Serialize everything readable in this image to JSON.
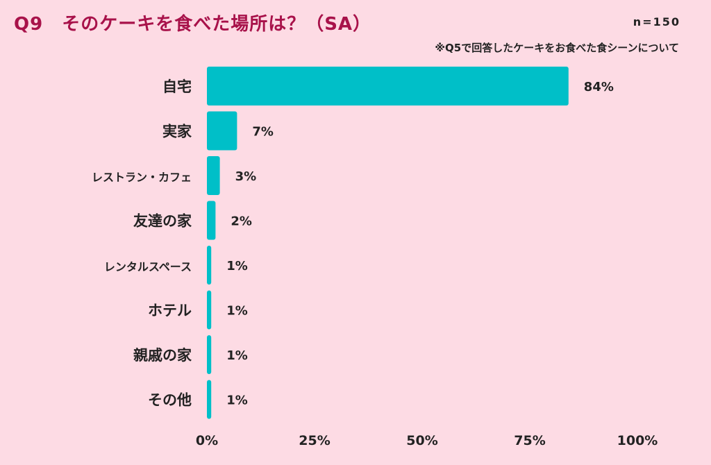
{
  "header": {
    "title": "Q9　そのケーキを食べた場所は？（SA）",
    "sample_size": "n=150",
    "note": "※Q5で回答したケーキをお食べた食シーンについて"
  },
  "colors": {
    "background": "#fddbe4",
    "bar": "#00bfc8",
    "title": "#a8124a",
    "text": "#222222"
  },
  "chart_data": {
    "type": "bar",
    "orientation": "horizontal",
    "categories": [
      "自宅",
      "実家",
      "レストラン・カフェ",
      "友達の家",
      "レンタルスペース",
      "ホテル",
      "親戚の家",
      "その他"
    ],
    "values": [
      84,
      7,
      3,
      2,
      1,
      1,
      1,
      1
    ],
    "value_labels": [
      "84%",
      "7%",
      "3%",
      "2%",
      "1%",
      "1%",
      "1%",
      "1%"
    ],
    "xlim": [
      0,
      100
    ],
    "xticks": [
      0,
      25,
      50,
      75,
      100
    ],
    "xtick_labels": [
      "0%",
      "25%",
      "50%",
      "75%",
      "100%"
    ],
    "grid": false,
    "legend": "none"
  }
}
